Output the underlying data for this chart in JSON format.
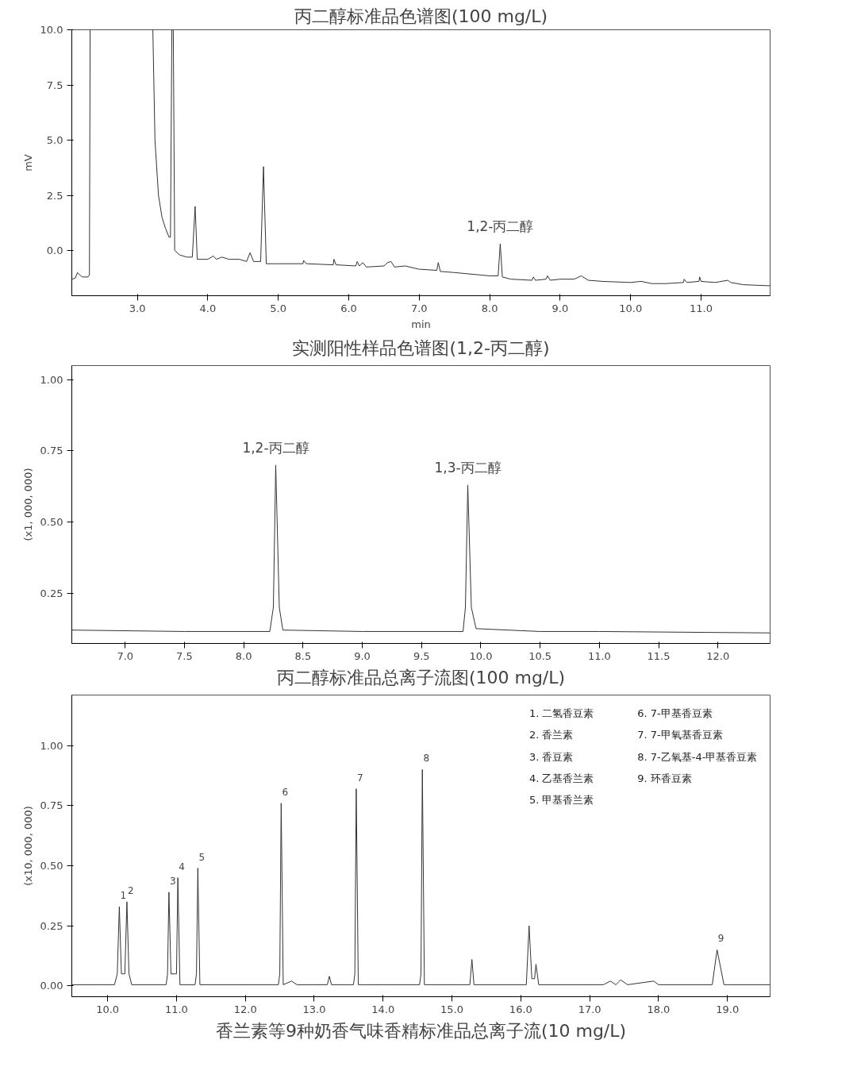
{
  "chart_data": [
    {
      "type": "line",
      "title": "丙二醇标准品色谱图(100 mg/L)",
      "xlabel": "min",
      "ylabel": "mV",
      "xlim": [
        2.07,
        11.98
      ],
      "ylim": [
        -2.05,
        10.0
      ],
      "xticks": [
        {
          "value": 3,
          "label": "3.0"
        },
        {
          "value": 4,
          "label": "4.0"
        },
        {
          "value": 5,
          "label": "5.0"
        },
        {
          "value": 6,
          "label": "6.0"
        },
        {
          "value": 7,
          "label": "7.0"
        },
        {
          "value": 8,
          "label": "8.0"
        },
        {
          "value": 9,
          "label": "9.0"
        },
        {
          "value": 10,
          "label": "10.0"
        },
        {
          "value": 11,
          "label": "11.0"
        }
      ],
      "yticks": [
        {
          "value": 0,
          "label": "0.0"
        },
        {
          "value": 2.5,
          "label": "2.5"
        },
        {
          "value": 5,
          "label": "5.0"
        },
        {
          "value": 7.5,
          "label": "7.5"
        },
        {
          "value": 10,
          "label": "10.0"
        }
      ],
      "annotations": [
        {
          "text": "1,2-丙二醇",
          "x": 8.15,
          "y": 0.3
        },
        "实测阳性样品色谱图(1,2-丙二醇)"
      ],
      "series": [
        {
          "color": "#333333",
          "x": [
            2.07,
            2.12,
            2.15,
            2.18,
            2.22,
            2.3,
            2.32,
            2.33,
            2.34,
            2.35,
            3.21,
            3.22,
            3.25,
            3.3,
            3.35,
            3.4,
            3.45,
            3.47,
            3.49,
            3.5,
            3.51,
            3.53,
            3.6,
            3.7,
            3.78,
            3.82,
            3.85,
            4.0,
            4.08,
            4.12,
            4.2,
            4.3,
            4.45,
            4.55,
            4.6,
            4.65,
            4.75,
            4.79,
            4.83,
            5.0,
            5.35,
            5.36,
            5.4,
            5.78,
            5.79,
            5.82,
            6.1,
            6.12,
            6.15,
            6.2,
            6.25,
            6.5,
            6.55,
            6.6,
            6.65,
            6.8,
            7.0,
            7.25,
            7.27,
            7.3,
            7.5,
            8.0,
            8.12,
            8.15,
            8.18,
            8.3,
            8.6,
            8.62,
            8.65,
            8.8,
            8.82,
            8.86,
            9.0,
            9.2,
            9.3,
            9.4,
            9.6,
            10.0,
            10.15,
            10.3,
            10.5,
            10.75,
            10.76,
            10.8,
            10.97,
            10.98,
            11.0,
            11.2,
            11.38,
            11.42,
            11.6,
            11.98
          ],
          "values": [
            -1.3,
            -1.25,
            -1.0,
            -1.1,
            -1.2,
            -1.2,
            -1.1,
            10.0,
            10.0,
            null,
            null,
            10.0,
            5.0,
            2.5,
            1.5,
            1.0,
            0.6,
            0.6,
            10.0,
            null,
            10.0,
            0.0,
            -0.2,
            -0.3,
            -0.3,
            2.0,
            -0.4,
            -0.4,
            -0.25,
            -0.4,
            -0.3,
            -0.4,
            -0.4,
            -0.5,
            -0.1,
            -0.5,
            -0.5,
            3.8,
            -0.6,
            -0.6,
            -0.6,
            -0.45,
            -0.6,
            -0.65,
            -0.4,
            -0.65,
            -0.7,
            -0.5,
            -0.7,
            -0.55,
            -0.75,
            -0.7,
            -0.55,
            -0.5,
            -0.75,
            -0.7,
            -0.85,
            -0.9,
            -0.55,
            -0.95,
            -1.0,
            -1.15,
            -1.15,
            0.3,
            -1.2,
            -1.3,
            -1.35,
            -1.2,
            -1.35,
            -1.3,
            -1.15,
            -1.35,
            -1.3,
            -1.3,
            -1.15,
            -1.35,
            -1.4,
            -1.45,
            -1.4,
            -1.5,
            -1.5,
            -1.45,
            -1.3,
            -1.45,
            -1.4,
            -1.2,
            -1.4,
            -1.45,
            -1.35,
            -1.45,
            -1.55,
            -1.6
          ]
        }
      ]
    },
    {
      "type": "line",
      "ylabel": "(x1, 000, 000)",
      "xlim": [
        6.55,
        12.44
      ],
      "ylim": [
        0.073,
        1.05
      ],
      "xticks": [
        {
          "value": 7,
          "label": "7.0"
        },
        7.5,
        {
          "value": 8,
          "label": "8.0"
        },
        8.5,
        {
          "value": 9,
          "label": "9.0"
        },
        9.5,
        {
          "value": 10,
          "label": "10.0"
        },
        10.5,
        {
          "value": 11,
          "label": "11.0"
        },
        11.5,
        {
          "value": 12,
          "label": "12.0"
        }
      ],
      "yticks": [
        {
          "value": 0.25,
          "label": "0.25"
        },
        {
          "value": 0.5,
          "label": "0.50"
        },
        {
          "value": 0.75,
          "label": "0.75"
        },
        {
          "value": 1,
          "label": "1.00"
        }
      ],
      "annotations": [
        {
          "text": "1,2-丙二醇",
          "x": 8.27,
          "y": 0.7
        },
        {
          "text": "1,3-丙二醇",
          "x": 9.89,
          "y": 0.63
        },
        "丙二醇标准品总离子流图(100 mg/L)"
      ],
      "series": [
        {
          "color": "#333333",
          "x": [
            6.55,
            7.5,
            8.0,
            8.22,
            8.25,
            8.27,
            8.3,
            8.33,
            9.0,
            9.85,
            9.87,
            9.89,
            9.92,
            9.96,
            10.5,
            11.0,
            12.44
          ],
          "values": [
            0.12,
            0.115,
            0.115,
            0.115,
            0.2,
            0.7,
            0.2,
            0.12,
            0.115,
            0.115,
            0.2,
            0.63,
            0.2,
            0.125,
            0.115,
            0.115,
            0.11
          ]
        }
      ]
    },
    {
      "type": "line",
      "ylabel": "(x10, 000, 000)",
      "xlim": [
        9.48,
        19.62
      ],
      "ylim": [
        -0.045,
        1.21
      ],
      "xticks": [
        {
          "value": 10,
          "label": "10.0"
        },
        {
          "value": 11,
          "label": "11.0"
        },
        {
          "value": 12,
          "label": "12.0"
        },
        {
          "value": 13,
          "label": "13.0"
        },
        {
          "value": 14,
          "label": "14.0"
        },
        {
          "value": 15,
          "label": "15.0"
        },
        {
          "value": 16,
          "label": "16.0"
        },
        {
          "value": 17,
          "label": "17.0"
        },
        {
          "value": 18,
          "label": "18.0"
        },
        {
          "value": 19,
          "label": "19.0"
        }
      ],
      "yticks": [
        {
          "value": 0,
          "label": "0.00"
        },
        {
          "value": 0.25,
          "label": "0.25"
        },
        {
          "value": 0.5,
          "label": "0.50"
        },
        {
          "value": 0.75,
          "label": "0.75"
        },
        {
          "value": 1,
          "label": "1.00"
        }
      ],
      "annotations": [
        {
          "text": "1",
          "x": 10.17,
          "y": 0.33
        },
        {
          "text": "2",
          "x": 10.28,
          "y": 0.35
        },
        {
          "text": "3",
          "x": 10.89,
          "y": 0.39
        },
        {
          "text": "4",
          "x": 11.02,
          "y": 0.45
        },
        {
          "text": "5",
          "x": 11.31,
          "y": 0.49
        },
        {
          "text": "6",
          "x": 12.52,
          "y": 0.76
        },
        {
          "text": "7",
          "x": 13.61,
          "y": 0.82
        },
        {
          "text": "8",
          "x": 14.57,
          "y": 0.9
        },
        {
          "text": "9",
          "x": 18.85,
          "y": 0.15
        },
        "1.  二氢香豆素",
        "2.  香兰素",
        "3.  香豆素",
        "4.  乙基香兰素",
        "5.  甲基香兰素",
        "6.  7-甲基香豆素",
        "7.  7-甲氧基香豆素",
        "8.  7-乙氧基-4-甲基香豆素",
        "9.  环香豆素",
        "香兰素等9种奶香气味香精标准品总离子流(10 mg/L)"
      ],
      "series": [
        {
          "color": "#333333",
          "x": [
            9.48,
            10.1,
            10.14,
            10.17,
            10.2,
            10.23,
            10.25,
            10.28,
            10.31,
            10.35,
            10.85,
            10.87,
            10.89,
            10.92,
            10.98,
            11.0,
            11.02,
            11.05,
            11.27,
            11.29,
            11.31,
            11.34,
            12.48,
            12.5,
            12.52,
            12.55,
            12.67,
            12.75,
            13.19,
            13.22,
            13.25,
            13.57,
            13.59,
            13.61,
            13.64,
            14.53,
            14.55,
            14.57,
            14.6,
            15.26,
            15.29,
            15.32,
            16.08,
            16.12,
            16.16,
            16.2,
            16.22,
            16.26,
            17.2,
            17.3,
            17.38,
            17.45,
            17.55,
            17.93,
            18.0,
            18.78,
            18.85,
            18.95,
            19.62
          ],
          "values": [
            0.005,
            0.005,
            0.05,
            0.33,
            0.05,
            0.05,
            0.05,
            0.35,
            0.05,
            0.005,
            0.005,
            0.05,
            0.39,
            0.05,
            0.05,
            0.05,
            0.45,
            0.005,
            0.005,
            0.05,
            0.49,
            0.005,
            0.005,
            0.05,
            0.76,
            0.005,
            0.02,
            0.005,
            0.005,
            0.04,
            0.005,
            0.005,
            0.05,
            0.82,
            0.005,
            0.005,
            0.05,
            0.9,
            0.005,
            0.005,
            0.11,
            0.005,
            0.005,
            0.25,
            0.03,
            0.03,
            0.09,
            0.005,
            0.005,
            0.02,
            0.005,
            0.025,
            0.005,
            0.02,
            0.005,
            0.005,
            0.15,
            0.005,
            0.005
          ]
        }
      ]
    }
  ]
}
